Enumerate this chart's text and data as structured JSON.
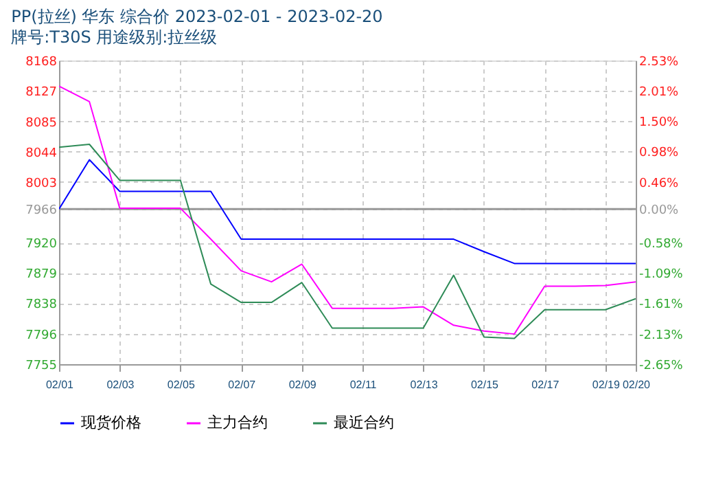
{
  "chart_data": {
    "type": "line",
    "title": "PP(拉丝) 华东 综合价 2023-02-01 - 2023-02-20",
    "subtitle": "牌号:T30S 用途级别:拉丝级",
    "x": [
      "2023-02-01",
      "2023-02-02",
      "2023-02-03",
      "2023-02-04",
      "2023-02-05",
      "2023-02-06",
      "2023-02-07",
      "2023-02-08",
      "2023-02-09",
      "2023-02-10",
      "2023-02-11",
      "2023-02-12",
      "2023-02-13",
      "2023-02-14",
      "2023-02-15",
      "2023-02-16",
      "2023-02-17",
      "2023-02-18",
      "2023-02-19",
      "2023-02-20"
    ],
    "series": [
      {
        "name": "现货价格",
        "color": "#0000ff",
        "values": [
          7966,
          8033,
          7990,
          7990,
          7990,
          7990,
          7925,
          7925,
          7925,
          7925,
          7925,
          7925,
          7925,
          7925,
          7908,
          7892,
          7892,
          7892,
          7892,
          7892
        ]
      },
      {
        "name": "主力合约",
        "color": "#ff00ff",
        "values": [
          8133,
          8112,
          7967,
          7967,
          7967,
          7925,
          7882,
          7867,
          7891,
          7831,
          7831,
          7831,
          7833,
          7808,
          7800,
          7796,
          7861,
          7861,
          7862,
          7867
        ]
      },
      {
        "name": "最近合约",
        "color": "#2e8b57",
        "values": [
          8050,
          8054,
          8005,
          8005,
          8005,
          7864,
          7839,
          7839,
          7866,
          7804,
          7804,
          7804,
          7804,
          7876,
          7792,
          7790,
          7829,
          7829,
          7829,
          7844
        ]
      }
    ],
    "xlim": [
      "2023-02-01",
      "2023-02-20"
    ],
    "xticks": [
      {
        "value": "2023-02-01",
        "label": "02/01"
      },
      {
        "value": "2023-02-03",
        "label": "02/03"
      },
      {
        "value": "2023-02-05",
        "label": "02/05"
      },
      {
        "value": "2023-02-07",
        "label": "02/07"
      },
      {
        "value": "2023-02-09",
        "label": "02/09"
      },
      {
        "value": "2023-02-11",
        "label": "02/11"
      },
      {
        "value": "2023-02-13",
        "label": "02/13"
      },
      {
        "value": "2023-02-15",
        "label": "02/15"
      },
      {
        "value": "2023-02-17",
        "label": "02/17"
      },
      {
        "value": "2023-02-19",
        "label": "02/19"
      },
      {
        "value": "2023-02-20",
        "label": "02/20"
      }
    ],
    "ylim": [
      7755,
      8168
    ],
    "yticks": [
      7755,
      7796,
      7838,
      7879,
      7920,
      7966,
      8003,
      8044,
      8085,
      8127,
      8168
    ],
    "y2lim": [
      -2.65,
      2.53
    ],
    "y2ticks": [
      {
        "value": -2.65,
        "label": "-2.65%"
      },
      {
        "value": -2.13,
        "label": "-2.13%"
      },
      {
        "value": -1.61,
        "label": "-1.61%"
      },
      {
        "value": -1.09,
        "label": "-1.09%"
      },
      {
        "value": -0.58,
        "label": "-0.58%"
      },
      {
        "value": 0,
        "label": "0.00%"
      },
      {
        "value": 0.46,
        "label": "0.46%"
      },
      {
        "value": 0.98,
        "label": "0.98%"
      },
      {
        "value": 1.5,
        "label": "1.50%"
      },
      {
        "value": 2.01,
        "label": "2.01%"
      },
      {
        "value": 2.53,
        "label": "2.53%"
      }
    ],
    "ref_lines": [
      {
        "axis": "y",
        "value": 7966,
        "color": "#999999"
      }
    ],
    "grid": true,
    "legend": "bottom",
    "marker": "none",
    "line_style": "solid"
  }
}
